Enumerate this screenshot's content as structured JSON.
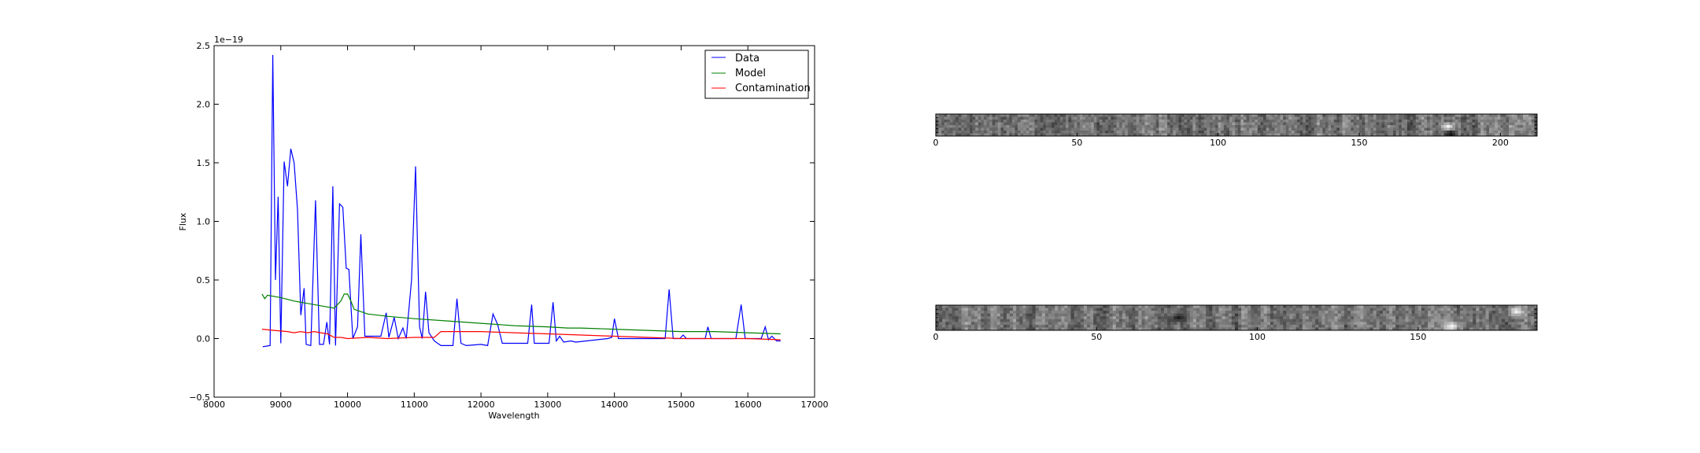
{
  "chart_data": [
    {
      "type": "line",
      "xlabel": "Wavelength",
      "ylabel": "Flux",
      "y_offset_label": "1e−19",
      "xlim": [
        8000,
        17000
      ],
      "ylim": [
        -0.5,
        2.5
      ],
      "x_ticks": [
        8000,
        9000,
        10000,
        11000,
        12000,
        13000,
        14000,
        15000,
        16000,
        17000
      ],
      "y_ticks": [
        -0.5,
        0.0,
        0.5,
        1.0,
        1.5,
        2.0,
        2.5
      ],
      "x_tick_labels": [
        "8000",
        "9000",
        "10000",
        "11000",
        "12000",
        "13000",
        "14000",
        "15000",
        "16000",
        "17000"
      ],
      "y_tick_labels": [
        "−0.5",
        "0.0",
        "0.5",
        "1.0",
        "1.5",
        "2.0",
        "2.5"
      ],
      "grid": false,
      "legend_position": "top-right",
      "series": [
        {
          "name": "Data",
          "color": "#0000ff",
          "points": [
            [
              8730,
              -0.07
            ],
            [
              8840,
              -0.06
            ],
            [
              8880,
              2.42
            ],
            [
              8920,
              0.5
            ],
            [
              8960,
              1.21
            ],
            [
              9000,
              -0.04
            ],
            [
              9050,
              1.51
            ],
            [
              9100,
              1.3
            ],
            [
              9150,
              1.62
            ],
            [
              9200,
              1.5
            ],
            [
              9250,
              1.1
            ],
            [
              9300,
              0.2
            ],
            [
              9350,
              0.43
            ],
            [
              9380,
              -0.05
            ],
            [
              9450,
              -0.06
            ],
            [
              9520,
              1.18
            ],
            [
              9580,
              -0.05
            ],
            [
              9640,
              -0.05
            ],
            [
              9690,
              0.14
            ],
            [
              9730,
              -0.05
            ],
            [
              9780,
              1.3
            ],
            [
              9820,
              -0.06
            ],
            [
              9880,
              1.15
            ],
            [
              9930,
              1.12
            ],
            [
              9980,
              0.6
            ],
            [
              10020,
              0.59
            ],
            [
              10080,
              0.0
            ],
            [
              10150,
              0.1
            ],
            [
              10200,
              0.89
            ],
            [
              10260,
              0.02
            ],
            [
              10500,
              0.02
            ],
            [
              10580,
              0.22
            ],
            [
              10620,
              0.01
            ],
            [
              10700,
              0.18
            ],
            [
              10760,
              0.0
            ],
            [
              10830,
              0.09
            ],
            [
              10880,
              0.0
            ],
            [
              10960,
              0.5
            ],
            [
              11020,
              1.47
            ],
            [
              11080,
              0.1
            ],
            [
              11120,
              0.0
            ],
            [
              11170,
              0.4
            ],
            [
              11220,
              0.05
            ],
            [
              11300,
              -0.02
            ],
            [
              11400,
              -0.06
            ],
            [
              11580,
              -0.06
            ],
            [
              11640,
              0.34
            ],
            [
              11700,
              -0.04
            ],
            [
              11780,
              -0.06
            ],
            [
              12000,
              -0.05
            ],
            [
              12100,
              -0.06
            ],
            [
              12180,
              0.21
            ],
            [
              12250,
              0.12
            ],
            [
              12320,
              -0.04
            ],
            [
              12700,
              -0.04
            ],
            [
              12760,
              0.29
            ],
            [
              12800,
              -0.04
            ],
            [
              13020,
              -0.04
            ],
            [
              13080,
              0.31
            ],
            [
              13130,
              -0.02
            ],
            [
              13180,
              0.02
            ],
            [
              13240,
              -0.03
            ],
            [
              13350,
              -0.02
            ],
            [
              13420,
              -0.03
            ],
            [
              13900,
              0.0
            ],
            [
              13960,
              0.01
            ],
            [
              14000,
              0.17
            ],
            [
              14060,
              0.0
            ],
            [
              14760,
              0.0
            ],
            [
              14820,
              0.42
            ],
            [
              14880,
              0.0
            ],
            [
              14980,
              0.0
            ],
            [
              15030,
              0.03
            ],
            [
              15080,
              0.0
            ],
            [
              15360,
              0.0
            ],
            [
              15400,
              0.1
            ],
            [
              15450,
              0.0
            ],
            [
              15820,
              0.0
            ],
            [
              15900,
              0.29
            ],
            [
              15960,
              0.0
            ],
            [
              16200,
              0.0
            ],
            [
              16260,
              0.1
            ],
            [
              16310,
              -0.01
            ],
            [
              16360,
              0.02
            ],
            [
              16430,
              -0.02
            ],
            [
              16490,
              -0.02
            ]
          ]
        },
        {
          "name": "Model",
          "color": "#008000",
          "points": [
            [
              8720,
              0.38
            ],
            [
              8760,
              0.34
            ],
            [
              8800,
              0.37
            ],
            [
              9000,
              0.35
            ],
            [
              9200,
              0.32
            ],
            [
              9400,
              0.3
            ],
            [
              9600,
              0.28
            ],
            [
              9800,
              0.26
            ],
            [
              9900,
              0.32
            ],
            [
              9950,
              0.38
            ],
            [
              10000,
              0.38
            ],
            [
              10050,
              0.32
            ],
            [
              10100,
              0.25
            ],
            [
              10300,
              0.21
            ],
            [
              10600,
              0.19
            ],
            [
              11000,
              0.17
            ],
            [
              11500,
              0.15
            ],
            [
              12000,
              0.13
            ],
            [
              12500,
              0.11
            ],
            [
              13000,
              0.1
            ],
            [
              13300,
              0.09
            ],
            [
              13500,
              0.09
            ],
            [
              14000,
              0.08
            ],
            [
              14500,
              0.07
            ],
            [
              15000,
              0.06
            ],
            [
              15500,
              0.06
            ],
            [
              16000,
              0.05
            ],
            [
              16490,
              0.04
            ]
          ]
        },
        {
          "name": "Contamination",
          "color": "#ff0000",
          "points": [
            [
              8720,
              0.08
            ],
            [
              8900,
              0.07
            ],
            [
              9100,
              0.06
            ],
            [
              9200,
              0.05
            ],
            [
              9300,
              0.06
            ],
            [
              9400,
              0.05
            ],
            [
              9500,
              0.06
            ],
            [
              9600,
              0.05
            ],
            [
              9700,
              0.04
            ],
            [
              9800,
              0.01
            ],
            [
              9900,
              0.01
            ],
            [
              10000,
              0.0
            ],
            [
              10300,
              0.01
            ],
            [
              10600,
              0.0
            ],
            [
              11000,
              0.01
            ],
            [
              11300,
              0.01
            ],
            [
              11400,
              0.06
            ],
            [
              12000,
              0.06
            ],
            [
              12500,
              0.05
            ],
            [
              13000,
              0.04
            ],
            [
              13500,
              0.03
            ],
            [
              14000,
              0.02
            ],
            [
              14500,
              0.01
            ],
            [
              15000,
              0.0
            ],
            [
              15500,
              0.0
            ],
            [
              16000,
              0.0
            ],
            [
              16490,
              -0.01
            ]
          ]
        }
      ]
    },
    {
      "type": "heatmap",
      "x_ticks": [
        0,
        50,
        100,
        150,
        200
      ],
      "x_tick_labels": [
        "0",
        "50",
        "100",
        "150",
        "200"
      ],
      "xlim": [
        0,
        213
      ],
      "colormap": "gray",
      "seed": 17,
      "bright_spots": [
        [
          181,
          0.6,
          1.0
        ],
        [
          182,
          0.9,
          0.05
        ]
      ]
    },
    {
      "type": "heatmap",
      "x_ticks": [
        0,
        50,
        100,
        150
      ],
      "x_tick_labels": [
        "0",
        "50",
        "100",
        "150"
      ],
      "xlim": [
        0,
        187
      ],
      "colormap": "gray",
      "seed": 42,
      "bright_spots": [
        [
          180,
          0.25,
          0.95
        ],
        [
          160,
          0.85,
          0.95
        ],
        [
          75,
          0.5,
          0.1
        ]
      ]
    }
  ]
}
